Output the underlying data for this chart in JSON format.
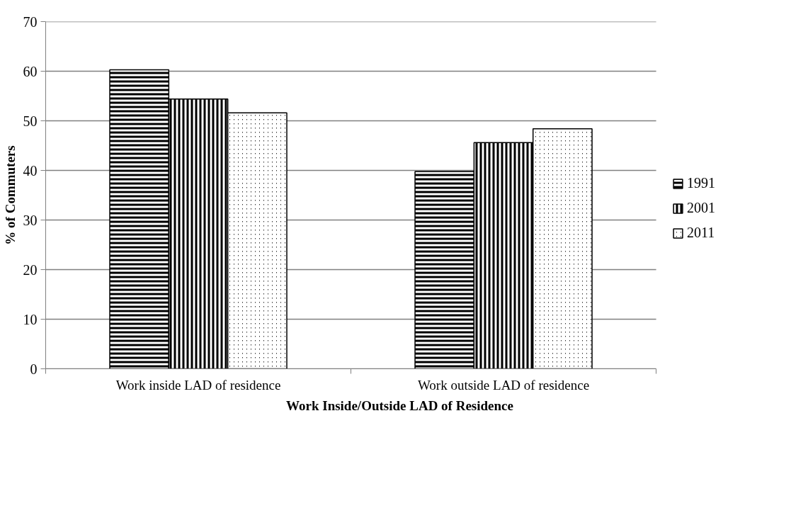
{
  "chart_data": {
    "type": "bar",
    "xlabel": "Work Inside/Outside LAD of Residence",
    "ylabel": "% of Commuters",
    "categories": [
      "Work inside LAD of residence",
      "Work outside LAD of residence"
    ],
    "series": [
      {
        "name": "1991",
        "color": "#000000",
        "values": [
          60.3,
          39.8
        ]
      },
      {
        "name": "2001",
        "color": "#000000",
        "values": [
          54.4,
          45.6
        ]
      },
      {
        "name": "2011",
        "color": "#000000",
        "values": [
          51.6,
          48.4
        ]
      }
    ],
    "ylim": [
      0,
      70
    ],
    "yticks": [
      0,
      10,
      20,
      30,
      40,
      50,
      60,
      70
    ],
    "grid": "y",
    "legend": "right"
  }
}
